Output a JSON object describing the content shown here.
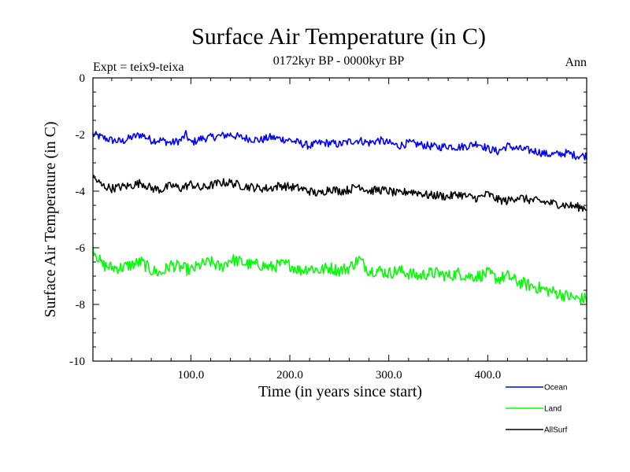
{
  "chart_data": {
    "type": "line",
    "title": "Surface Air Temperature (in C)",
    "subtitle_left": "Expt = teix9-teixa",
    "subtitle_center": "0172kyr BP - 0000kyr BP",
    "subtitle_right": "Ann",
    "xlabel": "Time (in years since start)",
    "ylabel": "Surface Air Temperature (in C)",
    "xlim": [
      1,
      500
    ],
    "ylim": [
      -10,
      0
    ],
    "x_ticks": [
      100,
      200,
      300,
      400
    ],
    "x_tick_labels": [
      "100.0",
      "200.0",
      "300.0",
      "400.0"
    ],
    "y_ticks": [
      0,
      -2,
      -4,
      -6,
      -8,
      -10
    ],
    "y_tick_labels": [
      "0",
      "-2",
      "-4",
      "-6",
      "-8",
      "-10"
    ],
    "grid": false,
    "legend_position": "bottom-right",
    "series": [
      {
        "name": "Ocean",
        "color": "#0000ff",
        "x": [
          1,
          10,
          20,
          30,
          40,
          50,
          60,
          70,
          80,
          90,
          95,
          100,
          110,
          120,
          130,
          140,
          150,
          160,
          170,
          180,
          190,
          200,
          210,
          220,
          230,
          240,
          250,
          260,
          270,
          280,
          290,
          300,
          310,
          320,
          330,
          340,
          350,
          360,
          370,
          380,
          390,
          400,
          410,
          420,
          430,
          440,
          450,
          460,
          470,
          480,
          490,
          500
        ],
        "values": [
          -2.0,
          -2.1,
          -2.2,
          -2.25,
          -2.1,
          -2.0,
          -2.2,
          -2.2,
          -2.3,
          -2.2,
          -2.0,
          -2.3,
          -2.15,
          -2.1,
          -2.05,
          -2.0,
          -2.1,
          -2.15,
          -2.2,
          -2.1,
          -2.15,
          -2.2,
          -2.3,
          -2.4,
          -2.3,
          -2.3,
          -2.35,
          -2.25,
          -2.2,
          -2.3,
          -2.2,
          -2.3,
          -2.4,
          -2.3,
          -2.35,
          -2.4,
          -2.45,
          -2.4,
          -2.45,
          -2.4,
          -2.3,
          -2.5,
          -2.6,
          -2.4,
          -2.5,
          -2.55,
          -2.6,
          -2.7,
          -2.7,
          -2.65,
          -2.75,
          -2.75
        ]
      },
      {
        "name": "Land",
        "color": "#00ff00",
        "x": [
          1,
          10,
          20,
          30,
          40,
          50,
          60,
          70,
          80,
          90,
          100,
          110,
          120,
          130,
          140,
          150,
          160,
          170,
          180,
          190,
          200,
          210,
          220,
          230,
          240,
          250,
          260,
          270,
          280,
          290,
          300,
          310,
          320,
          330,
          340,
          350,
          360,
          370,
          380,
          390,
          400,
          410,
          420,
          430,
          440,
          450,
          460,
          470,
          480,
          490,
          500
        ],
        "values": [
          -6.0,
          -6.6,
          -6.7,
          -6.7,
          -6.6,
          -6.5,
          -6.8,
          -6.9,
          -6.6,
          -6.7,
          -6.8,
          -6.6,
          -6.5,
          -6.7,
          -6.4,
          -6.5,
          -6.6,
          -6.6,
          -6.7,
          -6.6,
          -6.6,
          -6.8,
          -6.7,
          -6.8,
          -6.7,
          -6.8,
          -6.7,
          -6.4,
          -6.8,
          -6.8,
          -6.9,
          -6.8,
          -6.9,
          -7.0,
          -6.9,
          -6.9,
          -7.0,
          -6.9,
          -7.0,
          -7.0,
          -6.9,
          -7.1,
          -7.0,
          -7.2,
          -7.3,
          -7.4,
          -7.5,
          -7.6,
          -7.7,
          -7.8,
          -7.8
        ]
      },
      {
        "name": "AllSurf",
        "color": "#000000",
        "x": [
          1,
          10,
          20,
          30,
          40,
          50,
          60,
          70,
          80,
          90,
          100,
          110,
          120,
          130,
          140,
          150,
          160,
          170,
          180,
          190,
          200,
          210,
          220,
          230,
          240,
          250,
          260,
          270,
          280,
          290,
          300,
          310,
          320,
          330,
          340,
          350,
          360,
          370,
          380,
          390,
          400,
          410,
          420,
          430,
          440,
          450,
          460,
          470,
          480,
          490,
          500
        ],
        "values": [
          -3.5,
          -3.8,
          -3.9,
          -3.85,
          -3.8,
          -3.7,
          -3.9,
          -3.95,
          -3.8,
          -3.9,
          -3.75,
          -3.9,
          -3.8,
          -3.7,
          -3.7,
          -3.8,
          -3.85,
          -3.9,
          -3.9,
          -3.8,
          -3.85,
          -3.9,
          -4.0,
          -4.1,
          -3.9,
          -4.0,
          -3.95,
          -3.8,
          -4.0,
          -3.95,
          -4.0,
          -4.1,
          -4.0,
          -4.05,
          -4.15,
          -4.15,
          -4.2,
          -4.1,
          -4.2,
          -4.25,
          -4.1,
          -4.3,
          -4.35,
          -4.2,
          -4.3,
          -4.35,
          -4.4,
          -4.45,
          -4.5,
          -4.55,
          -4.6
        ]
      }
    ]
  }
}
